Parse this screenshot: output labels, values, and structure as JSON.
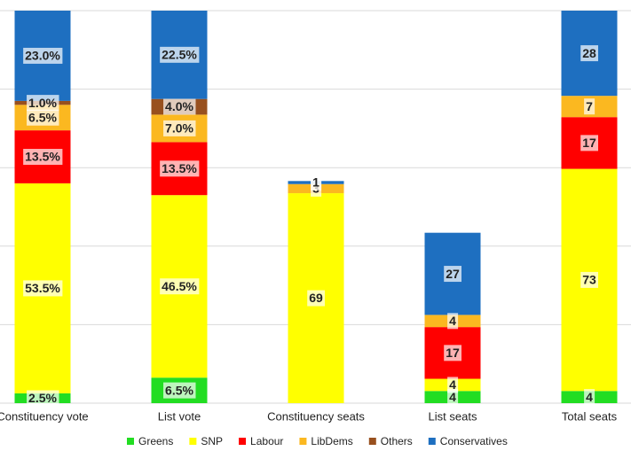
{
  "chart_data": {
    "type": "stacked_bar",
    "categories": [
      "Constituency vote",
      "List vote",
      "Constituency seats",
      "List seats",
      "Total seats"
    ],
    "category_axes": [
      "y",
      "y",
      "y2",
      "y2",
      "y2"
    ],
    "series": [
      {
        "name": "Greens",
        "color": "#22dd22",
        "values": [
          2.5,
          6.5,
          null,
          4,
          4
        ],
        "value_labels": [
          "2.5%",
          "6.5%",
          null,
          "4",
          "4"
        ]
      },
      {
        "name": "SNP",
        "color": "#ffff00",
        "values": [
          53.5,
          46.5,
          69,
          4,
          73
        ],
        "value_labels": [
          "53.5%",
          "46.5%",
          "69",
          "4",
          "73"
        ]
      },
      {
        "name": "Labour",
        "color": "#ff0000",
        "values": [
          13.5,
          13.5,
          null,
          17,
          17
        ],
        "value_labels": [
          "13.5%",
          "13.5%",
          null,
          "17",
          "17"
        ]
      },
      {
        "name": "LibDems",
        "color": "#fbb820",
        "values": [
          6.5,
          7,
          3,
          4,
          7
        ],
        "value_labels": [
          "6.5%",
          "7.0%",
          "3",
          "4",
          "7"
        ]
      },
      {
        "name": "Others",
        "color": "#98501e",
        "values": [
          1,
          4,
          null,
          null,
          null
        ],
        "value_labels": [
          "1.0%",
          "4.0%",
          null,
          null,
          null
        ]
      },
      {
        "name": "Conservatives",
        "color": "#1e6fc0",
        "values": [
          23,
          22.5,
          1,
          27,
          28
        ],
        "value_labels": [
          "23.0%",
          "22.5%",
          "1",
          "27",
          "28"
        ]
      }
    ],
    "ylim": [
      0,
      100
    ],
    "yticks": [
      0,
      20,
      40,
      60,
      80,
      100
    ],
    "y2lim": [
      0,
      129
    ],
    "grid": true,
    "legend": "bottom"
  }
}
